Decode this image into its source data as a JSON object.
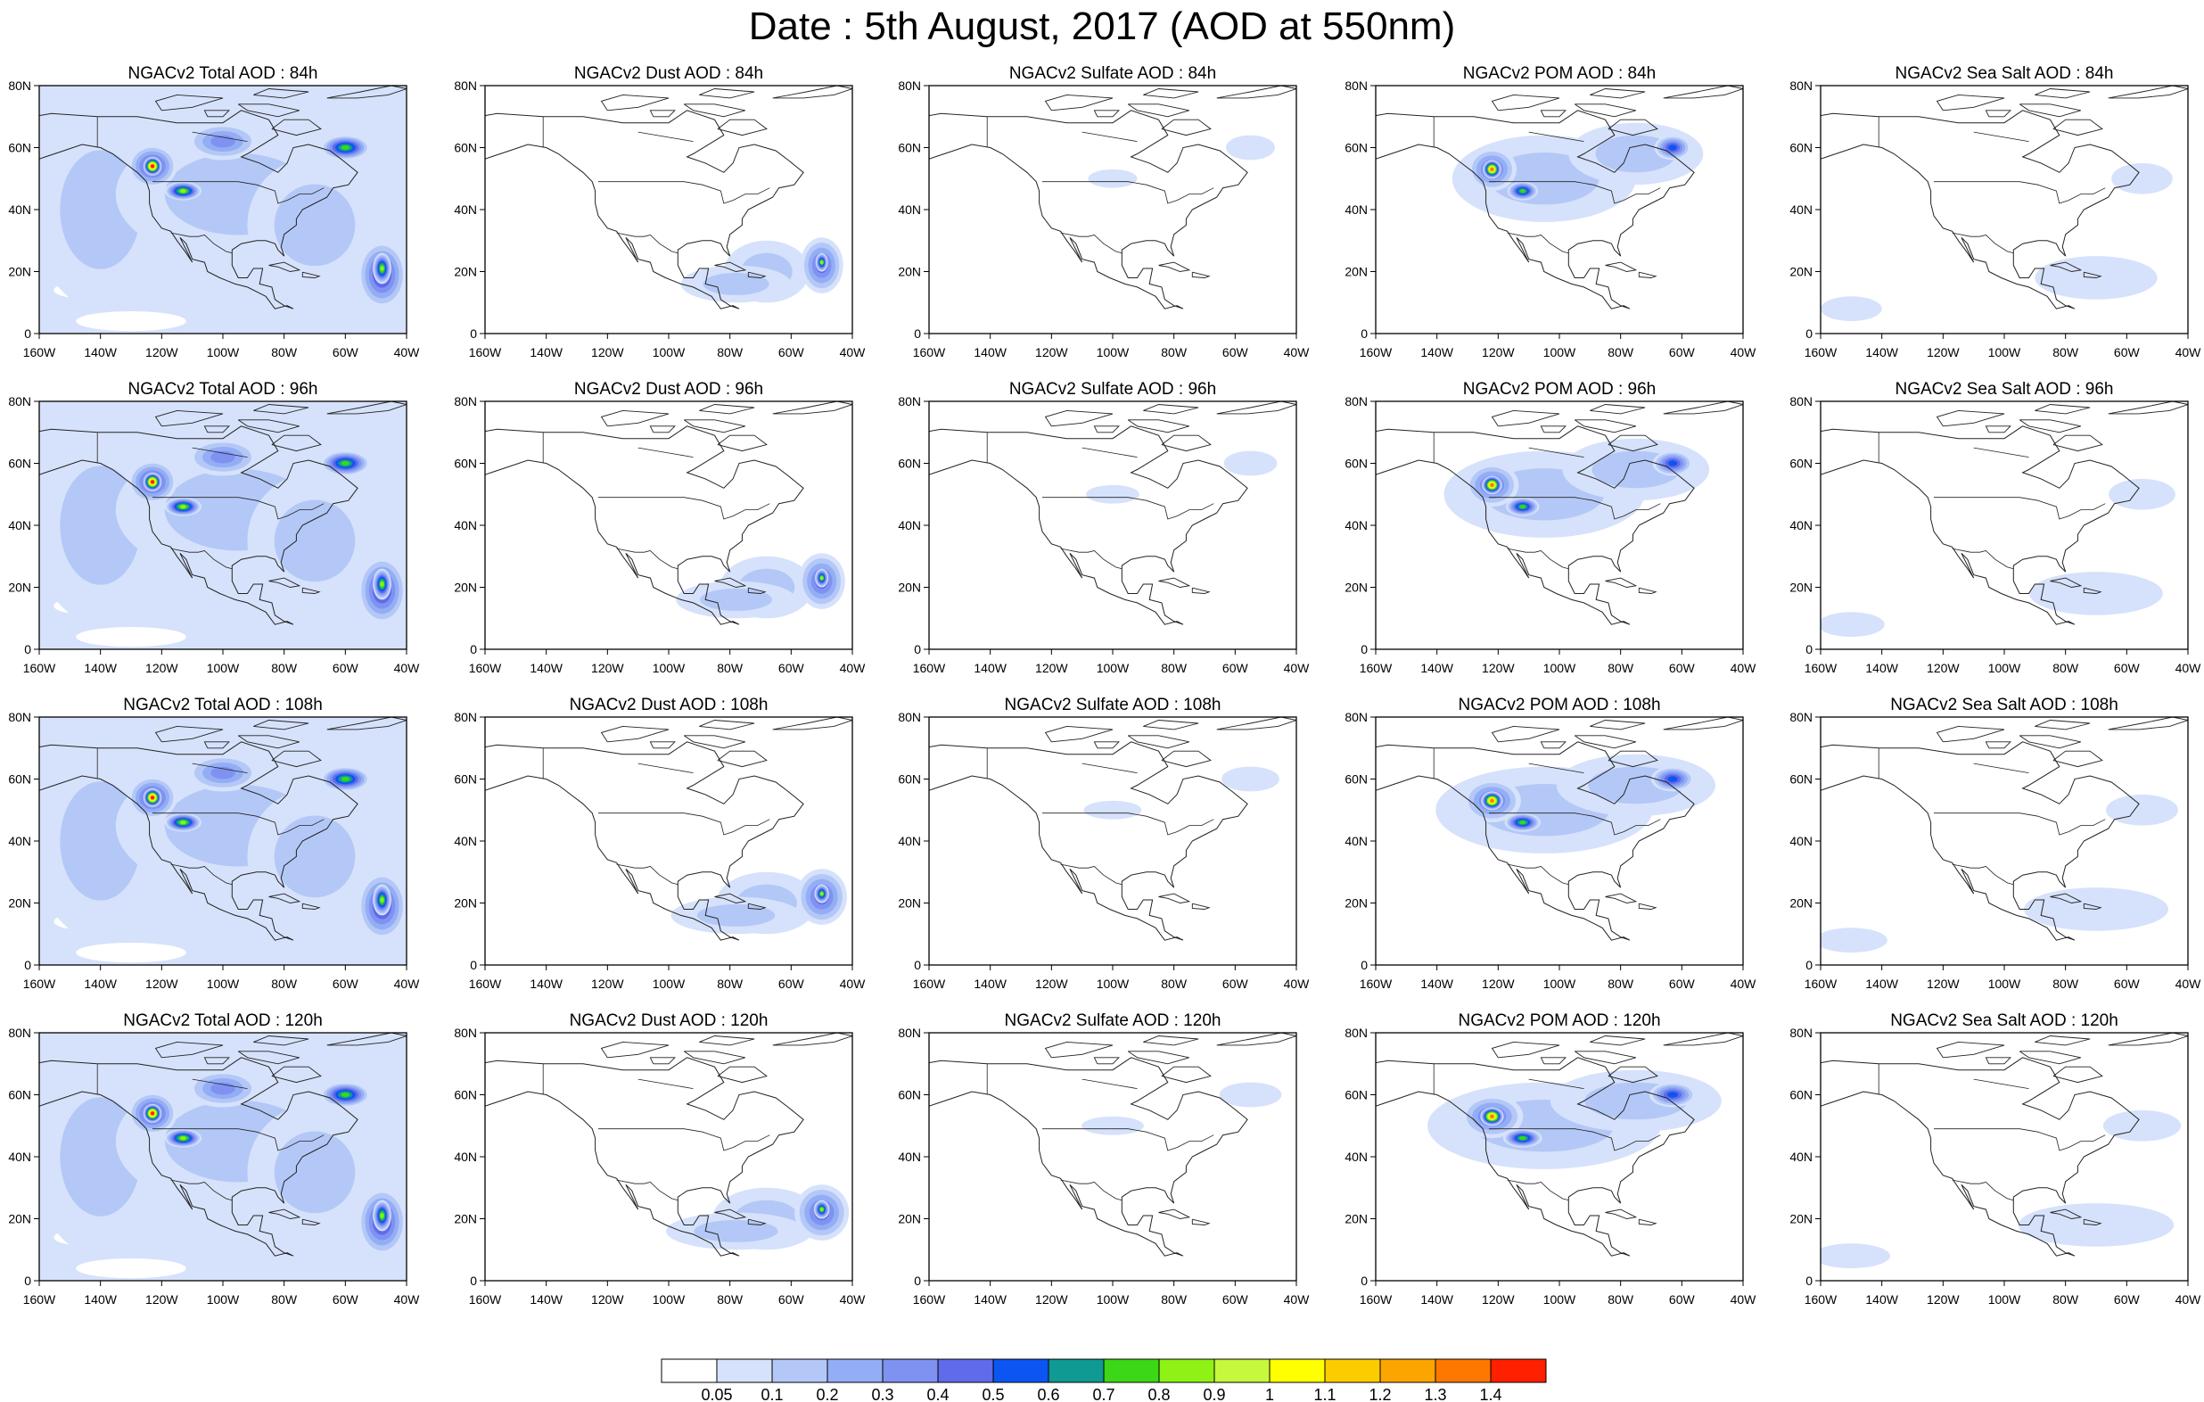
{
  "title": "Date : 5th August, 2017 (AOD at 550nm)",
  "axes": {
    "lat_ticks": [
      "0",
      "20N",
      "40N",
      "60N",
      "80N"
    ],
    "lon_ticks": [
      "160W",
      "140W",
      "120W",
      "100W",
      "80W",
      "60W",
      "40W"
    ],
    "lon_range": [
      -160,
      -40
    ],
    "lat_range": [
      0,
      80
    ]
  },
  "panels": [
    {
      "title": "NGACv2 Total AOD : 84h",
      "species": "total",
      "hour": 84
    },
    {
      "title": "NGACv2 Dust AOD : 84h",
      "species": "dust",
      "hour": 84
    },
    {
      "title": "NGACv2 Sulfate AOD : 84h",
      "species": "sulfate",
      "hour": 84
    },
    {
      "title": "NGACv2 POM AOD : 84h",
      "species": "pom",
      "hour": 84
    },
    {
      "title": "NGACv2 Sea Salt AOD : 84h",
      "species": "seasalt",
      "hour": 84
    },
    {
      "title": "NGACv2 Total AOD : 96h",
      "species": "total",
      "hour": 96
    },
    {
      "title": "NGACv2 Dust AOD : 96h",
      "species": "dust",
      "hour": 96
    },
    {
      "title": "NGACv2 Sulfate AOD : 96h",
      "species": "sulfate",
      "hour": 96
    },
    {
      "title": "NGACv2 POM AOD : 96h",
      "species": "pom",
      "hour": 96
    },
    {
      "title": "NGACv2 Sea Salt AOD : 96h",
      "species": "seasalt",
      "hour": 96
    },
    {
      "title": "NGACv2 Total AOD : 108h",
      "species": "total",
      "hour": 108
    },
    {
      "title": "NGACv2 Dust AOD : 108h",
      "species": "dust",
      "hour": 108
    },
    {
      "title": "NGACv2 Sulfate AOD : 108h",
      "species": "sulfate",
      "hour": 108
    },
    {
      "title": "NGACv2 POM AOD : 108h",
      "species": "pom",
      "hour": 108
    },
    {
      "title": "NGACv2 Sea Salt AOD : 108h",
      "species": "seasalt",
      "hour": 108
    },
    {
      "title": "NGACv2 Total AOD : 120h",
      "species": "total",
      "hour": 120
    },
    {
      "title": "NGACv2 Dust AOD : 120h",
      "species": "dust",
      "hour": 120
    },
    {
      "title": "NGACv2 Sulfate AOD : 120h",
      "species": "sulfate",
      "hour": 120
    },
    {
      "title": "NGACv2 POM AOD : 120h",
      "species": "pom",
      "hour": 120
    },
    {
      "title": "NGACv2 Sea Salt  AOD : 120h",
      "species": "seasalt",
      "hour": 120
    }
  ],
  "colorbar": {
    "labels": [
      "0.05",
      "0.1",
      "0.2",
      "0.3",
      "0.4",
      "0.5",
      "0.6",
      "0.7",
      "0.8",
      "0.9",
      "1",
      "1.1",
      "1.2",
      "1.3",
      "1.4"
    ],
    "colors": [
      "#ffffff",
      "#d6e2fb",
      "#b4c8f7",
      "#94aef5",
      "#7f92f2",
      "#5f6bea",
      "#0b56f3",
      "#0f9a94",
      "#3cd716",
      "#8ef214",
      "#c6f83c",
      "#ffff00",
      "#fdcc00",
      "#fca500",
      "#fe7800",
      "#ff2000"
    ]
  },
  "plumes": {
    "total": [
      {
        "lon": -140,
        "lat": 40,
        "rx": 22,
        "ry": 32,
        "v": 0.12
      },
      {
        "lon": -95,
        "lat": 45,
        "rx": 40,
        "ry": 22,
        "v": 0.15
      },
      {
        "lon": -70,
        "lat": 35,
        "rx": 22,
        "ry": 22,
        "v": 0.18
      },
      {
        "lon": -123,
        "lat": 54,
        "rx": 8,
        "ry": 7,
        "v": 0.5
      },
      {
        "lon": -123,
        "lat": 54,
        "rx": 3,
        "ry": 3,
        "v": 1.4
      },
      {
        "lon": -113,
        "lat": 46,
        "rx": 6,
        "ry": 3,
        "v": 0.8
      },
      {
        "lon": -100,
        "lat": 62,
        "rx": 12,
        "ry": 6,
        "v": 0.35
      },
      {
        "lon": -60,
        "lat": 60,
        "rx": 8,
        "ry": 4,
        "v": 0.7
      },
      {
        "lon": -48,
        "lat": 19,
        "rx": 8,
        "ry": 11,
        "v": 0.5
      },
      {
        "lon": -48,
        "lat": 21,
        "rx": 3,
        "ry": 5,
        "v": 0.85
      }
    ],
    "dust": [
      {
        "lon": -68,
        "lat": 20,
        "rx": 14,
        "ry": 10,
        "v": 0.12
      },
      {
        "lon": -50,
        "lat": 22,
        "rx": 7,
        "ry": 9,
        "v": 0.45
      },
      {
        "lon": -50,
        "lat": 23,
        "rx": 2,
        "ry": 3,
        "v": 0.85
      },
      {
        "lon": -78,
        "lat": 16,
        "rx": 18,
        "ry": 6,
        "v": 0.1
      }
    ],
    "sulfate": [
      {
        "lon": -100,
        "lat": 50,
        "rx": 8,
        "ry": 3,
        "v": 0.07
      },
      {
        "lon": -55,
        "lat": 60,
        "rx": 8,
        "ry": 4,
        "v": 0.07
      }
    ],
    "pom": [
      {
        "lon": -105,
        "lat": 50,
        "rx": 30,
        "ry": 14,
        "v": 0.1
      },
      {
        "lon": -75,
        "lat": 58,
        "rx": 22,
        "ry": 10,
        "v": 0.15
      },
      {
        "lon": -122,
        "lat": 53,
        "rx": 8,
        "ry": 7,
        "v": 0.45
      },
      {
        "lon": -122,
        "lat": 53,
        "rx": 3,
        "ry": 3,
        "v": 1.35
      },
      {
        "lon": -112,
        "lat": 46,
        "rx": 5,
        "ry": 3,
        "v": 0.75
      },
      {
        "lon": -63,
        "lat": 60,
        "rx": 6,
        "ry": 4,
        "v": 0.55
      }
    ],
    "seasalt": [
      {
        "lon": -70,
        "lat": 18,
        "rx": 20,
        "ry": 7,
        "v": 0.07
      },
      {
        "lon": -150,
        "lat": 8,
        "rx": 10,
        "ry": 4,
        "v": 0.07
      },
      {
        "lon": -55,
        "lat": 50,
        "rx": 10,
        "ry": 5,
        "v": 0.07
      }
    ]
  }
}
